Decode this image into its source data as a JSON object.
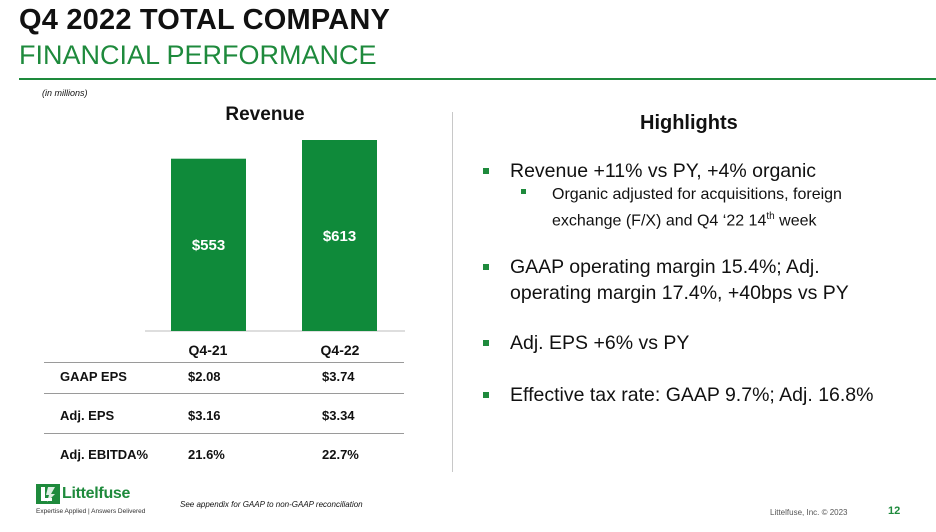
{
  "header": {
    "title": "Q4 2022 TOTAL COMPANY",
    "subtitle": "FINANCIAL PERFORMANCE",
    "units_note": "(in millions)"
  },
  "chart_data": {
    "type": "bar",
    "title": "Revenue",
    "categories": [
      "Q4-21",
      "Q4-22"
    ],
    "values": [
      553,
      613
    ],
    "data_labels": [
      "$553",
      "$613"
    ],
    "ylim": [
      0,
      613
    ],
    "xlabel": "",
    "ylabel": "",
    "bar_color": "#0f8a3a"
  },
  "metrics_table": {
    "rows": [
      {
        "label": "GAAP EPS",
        "q4_21": "$2.08",
        "q4_22": "$3.74"
      },
      {
        "label": "Adj. EPS",
        "q4_21": "$3.16",
        "q4_22": "$3.34"
      },
      {
        "label": "Adj. EBITDA%",
        "q4_21": "21.6%",
        "q4_22": "22.7%"
      }
    ]
  },
  "highlights": {
    "title": "Highlights",
    "item1": "Revenue +11% vs PY, +4% organic",
    "item1_sub_a": "Organic adjusted for acquisitions, foreign",
    "item1_sub_b1": "exchange (F/X) and Q4 ‘22 14",
    "item1_sub_sup": "th",
    "item1_sub_b2": " week",
    "item2_line1": "GAAP operating margin 15.4%; Adj.",
    "item2_line2": "operating margin 17.4%, +40bps vs PY",
    "item3": "Adj. EPS +6% vs PY",
    "item4": "Effective tax rate: GAAP 9.7%; Adj. 16.8%"
  },
  "footer": {
    "brand": "Littelfuse",
    "tagline": "Expertise Applied | Answers Delivered",
    "footnote": "See appendix for GAAP to non-GAAP reconciliation",
    "copyright": "Littelfuse, Inc. © 2023",
    "page_number": "12"
  },
  "colors": {
    "brand_green": "#1e8a3c",
    "bar_green": "#0f8a3a"
  }
}
